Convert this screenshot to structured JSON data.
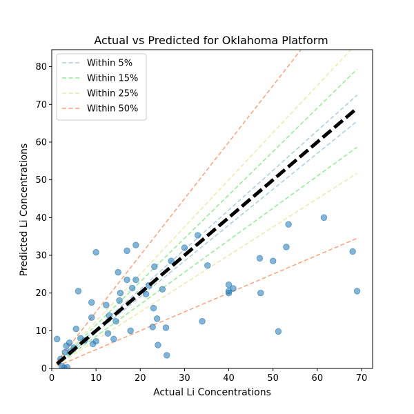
{
  "chart_data": {
    "type": "scatter",
    "title": "Actual vs Predicted for Oklahoma Platform",
    "xlabel": "Actual Li Concentrations",
    "ylabel": "Predicted Li Concentrations",
    "xlim": [
      0,
      72.5
    ],
    "ylim": [
      0,
      84.5
    ],
    "xticks": [
      0,
      10,
      20,
      30,
      40,
      50,
      60,
      70
    ],
    "yticks": [
      0,
      10,
      20,
      30,
      40,
      50,
      60,
      70,
      80
    ],
    "grid": false,
    "legend_position": "top-left",
    "identity_line": {
      "x": [
        1.2,
        69
      ],
      "color": "#000000",
      "style": "dashed"
    },
    "bands": [
      {
        "name": "Within 5%",
        "pct": 0.05,
        "color": "#a6cee3",
        "style": "dashed"
      },
      {
        "name": "Within 15%",
        "pct": 0.15,
        "color": "#90ee90",
        "style": "dashed"
      },
      {
        "name": "Within 25%",
        "pct": 0.25,
        "color": "#eee8aa",
        "style": "dashed"
      },
      {
        "name": "Within 50%",
        "pct": 0.5,
        "color": "#ffa07a",
        "style": "dashed"
      }
    ],
    "points_color": "#1f77b4",
    "points": [
      {
        "x": 1.2,
        "y": 7.8
      },
      {
        "x": 2.0,
        "y": 2.5
      },
      {
        "x": 2.3,
        "y": 0.6
      },
      {
        "x": 2.8,
        "y": 0.2
      },
      {
        "x": 3.0,
        "y": 4.3
      },
      {
        "x": 3.3,
        "y": 6.0
      },
      {
        "x": 3.5,
        "y": 0.3
      },
      {
        "x": 4.0,
        "y": 6.8
      },
      {
        "x": 4.2,
        "y": 4.5
      },
      {
        "x": 5.0,
        "y": 5.5
      },
      {
        "x": 5.5,
        "y": 10.5
      },
      {
        "x": 6.0,
        "y": 20.5
      },
      {
        "x": 6.5,
        "y": 8.0
      },
      {
        "x": 7.5,
        "y": 7.5
      },
      {
        "x": 9.0,
        "y": 17.5
      },
      {
        "x": 9.0,
        "y": 13.5
      },
      {
        "x": 9.3,
        "y": 6.5
      },
      {
        "x": 10.0,
        "y": 30.8
      },
      {
        "x": 10.0,
        "y": 7.2
      },
      {
        "x": 12.3,
        "y": 16.8
      },
      {
        "x": 12.7,
        "y": 9.3
      },
      {
        "x": 13.0,
        "y": 14.0
      },
      {
        "x": 14.0,
        "y": 7.8
      },
      {
        "x": 14.5,
        "y": 12.5
      },
      {
        "x": 15.0,
        "y": 25.5
      },
      {
        "x": 15.3,
        "y": 18.0
      },
      {
        "x": 15.5,
        "y": 20.0
      },
      {
        "x": 17.0,
        "y": 31.2
      },
      {
        "x": 17.0,
        "y": 23.5
      },
      {
        "x": 17.8,
        "y": 10.0
      },
      {
        "x": 18.2,
        "y": 21.3
      },
      {
        "x": 19.0,
        "y": 32.7
      },
      {
        "x": 19.0,
        "y": 23.5
      },
      {
        "x": 21.3,
        "y": 19.7
      },
      {
        "x": 22.0,
        "y": 22.0
      },
      {
        "x": 22.8,
        "y": 11.0
      },
      {
        "x": 23.0,
        "y": 16.0
      },
      {
        "x": 23.2,
        "y": 27.0
      },
      {
        "x": 23.8,
        "y": 13.2
      },
      {
        "x": 24.0,
        "y": 6.2
      },
      {
        "x": 25.0,
        "y": 21.0
      },
      {
        "x": 25.8,
        "y": 10.8
      },
      {
        "x": 26.0,
        "y": 3.5
      },
      {
        "x": 27.0,
        "y": 28.5
      },
      {
        "x": 30.0,
        "y": 32.0
      },
      {
        "x": 33.0,
        "y": 35.3
      },
      {
        "x": 34.0,
        "y": 12.5
      },
      {
        "x": 35.2,
        "y": 27.3
      },
      {
        "x": 40.0,
        "y": 22.2
      },
      {
        "x": 40.0,
        "y": 20.5
      },
      {
        "x": 40.0,
        "y": 20.0
      },
      {
        "x": 41.0,
        "y": 21.2
      },
      {
        "x": 47.0,
        "y": 29.2
      },
      {
        "x": 47.2,
        "y": 20.0
      },
      {
        "x": 50.0,
        "y": 28.5
      },
      {
        "x": 51.2,
        "y": 9.8
      },
      {
        "x": 53.0,
        "y": 32.2
      },
      {
        "x": 53.5,
        "y": 38.2
      },
      {
        "x": 61.5,
        "y": 40.0
      },
      {
        "x": 68.0,
        "y": 31.0
      },
      {
        "x": 69.0,
        "y": 20.5
      }
    ]
  }
}
